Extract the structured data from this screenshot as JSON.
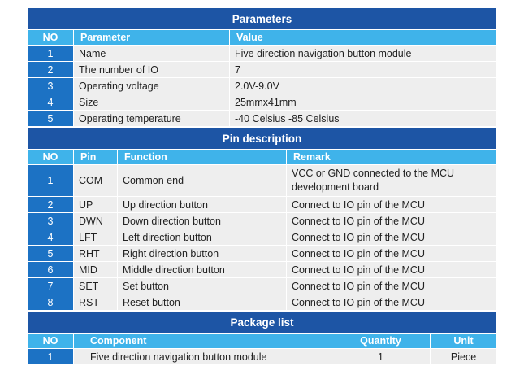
{
  "parameters": {
    "title": "Parameters",
    "headers": {
      "no": "NO",
      "parameter": "Parameter",
      "value": "Value"
    },
    "rows": [
      {
        "no": "1",
        "parameter": "Name",
        "value": "Five direction navigation button module"
      },
      {
        "no": "2",
        "parameter": "The number of IO",
        "value": "7"
      },
      {
        "no": "3",
        "parameter": "Operating voltage",
        "value": "2.0V-9.0V"
      },
      {
        "no": "4",
        "parameter": "Size",
        "value": "25mmx41mm"
      },
      {
        "no": "5",
        "parameter": "Operating temperature",
        "value": "-40 Celsius -85 Celsius"
      }
    ]
  },
  "pins": {
    "title": "Pin description",
    "headers": {
      "no": "NO",
      "pin": "Pin",
      "function": "Function",
      "remark": "Remark"
    },
    "rows": [
      {
        "no": "1",
        "pin": "COM",
        "function": "Common end",
        "remark": "VCC or GND connected to the MCU development board"
      },
      {
        "no": "2",
        "pin": "UP",
        "function": "Up direction button",
        "remark": "Connect to IO pin of the MCU"
      },
      {
        "no": "3",
        "pin": "DWN",
        "function": "Down direction button",
        "remark": "Connect to IO pin of the MCU"
      },
      {
        "no": "4",
        "pin": "LFT",
        "function": "Left direction button",
        "remark": "Connect to IO pin of the MCU"
      },
      {
        "no": "5",
        "pin": "RHT",
        "function": "Right direction button",
        "remark": "Connect to IO pin of the MCU"
      },
      {
        "no": "6",
        "pin": "MID",
        "function": "Middle direction button",
        "remark": "Connect to IO pin of the MCU"
      },
      {
        "no": "7",
        "pin": "SET",
        "function": "Set button",
        "remark": "Connect to IO pin of the MCU"
      },
      {
        "no": "8",
        "pin": "RST",
        "function": "Reset button",
        "remark": "Connect to IO pin of the MCU"
      }
    ]
  },
  "package": {
    "title": "Package list",
    "headers": {
      "no": "NO",
      "component": "Component",
      "quantity": "Quantity",
      "unit": "Unit"
    },
    "rows": [
      {
        "no": "1",
        "component": "Five direction navigation button module",
        "quantity": "1",
        "unit": "Piece"
      }
    ]
  },
  "colors": {
    "title_bar": "#1d55a5",
    "header_row": "#3fb3ea",
    "number_cell": "#1c72c4",
    "data_cell": "#eeeeee"
  }
}
